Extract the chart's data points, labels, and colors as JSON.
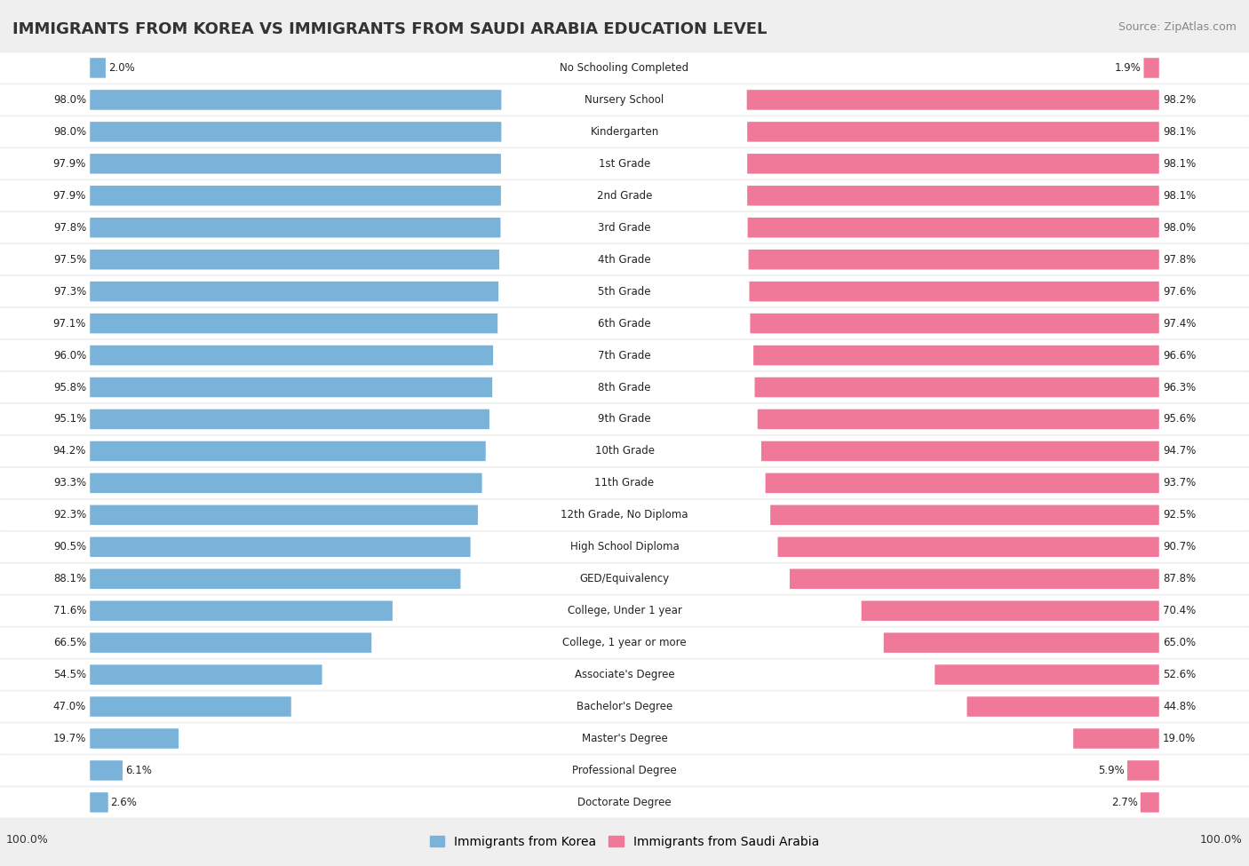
{
  "title": "IMMIGRANTS FROM KOREA VS IMMIGRANTS FROM SAUDI ARABIA EDUCATION LEVEL",
  "source": "Source: ZipAtlas.com",
  "categories": [
    "No Schooling Completed",
    "Nursery School",
    "Kindergarten",
    "1st Grade",
    "2nd Grade",
    "3rd Grade",
    "4th Grade",
    "5th Grade",
    "6th Grade",
    "7th Grade",
    "8th Grade",
    "9th Grade",
    "10th Grade",
    "11th Grade",
    "12th Grade, No Diploma",
    "High School Diploma",
    "GED/Equivalency",
    "College, Under 1 year",
    "College, 1 year or more",
    "Associate's Degree",
    "Bachelor's Degree",
    "Master's Degree",
    "Professional Degree",
    "Doctorate Degree"
  ],
  "korea_values": [
    2.0,
    98.0,
    98.0,
    97.9,
    97.9,
    97.8,
    97.5,
    97.3,
    97.1,
    96.0,
    95.8,
    95.1,
    94.2,
    93.3,
    92.3,
    90.5,
    88.1,
    71.6,
    66.5,
    54.5,
    47.0,
    19.7,
    6.1,
    2.6
  ],
  "saudi_values": [
    1.9,
    98.2,
    98.1,
    98.1,
    98.1,
    98.0,
    97.8,
    97.6,
    97.4,
    96.6,
    96.3,
    95.6,
    94.7,
    93.7,
    92.5,
    90.7,
    87.8,
    70.4,
    65.0,
    52.6,
    44.8,
    19.0,
    5.9,
    2.7
  ],
  "korea_color": "#7ab3d9",
  "saudi_color": "#f07898",
  "bg_color": "#efefef",
  "row_bg_color": "#ffffff",
  "legend_korea": "Immigrants from Korea",
  "legend_saudi": "Immigrants from Saudi Arabia",
  "left_label": "100.0%",
  "right_label": "100.0%",
  "title_fontsize": 13,
  "source_fontsize": 9,
  "bar_label_fontsize": 8.5,
  "cat_label_fontsize": 8.5
}
